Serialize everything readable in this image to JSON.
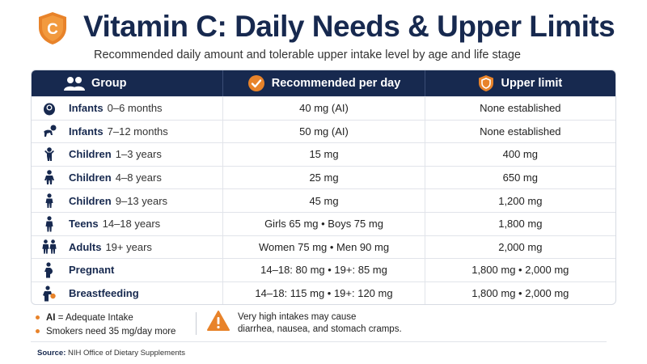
{
  "header": {
    "logo_letter": "C",
    "title": "Vitamin C: Daily Needs & Upper Limits",
    "subtitle": "Recommended daily amount and tolerable upper intake level by age and life stage"
  },
  "table": {
    "columns": [
      "Group",
      "Recommended per day",
      "Upper limit"
    ],
    "rows": [
      {
        "icon": "infant-icon",
        "group": "Infants",
        "age": "0–6 months",
        "recommended": "40 mg (AI)",
        "upper": "None established"
      },
      {
        "icon": "crawling-baby-icon",
        "group": "Infants",
        "age": "7–12 months",
        "recommended": "50 mg (AI)",
        "upper": "None established"
      },
      {
        "icon": "toddler-icon",
        "group": "Children",
        "age": "1–3 years",
        "recommended": "15 mg",
        "upper": "400 mg"
      },
      {
        "icon": "child-icon",
        "group": "Children",
        "age": "4–8 years",
        "recommended": "25 mg",
        "upper": "650 mg"
      },
      {
        "icon": "child-icon",
        "group": "Children",
        "age": "9–13 years",
        "recommended": "45 mg",
        "upper": "1,200 mg"
      },
      {
        "icon": "teen-icon",
        "group": "Teens",
        "age": "14–18 years",
        "recommended": "Girls 65 mg  •  Boys 75 mg",
        "upper": "1,800 mg"
      },
      {
        "icon": "adults-icon",
        "group": "Adults",
        "age": "19+ years",
        "recommended": "Women 75 mg  •  Men 90 mg",
        "upper": "2,000 mg"
      },
      {
        "icon": "pregnant-icon",
        "group": "Pregnant",
        "age": "",
        "recommended": "14–18: 80 mg  •  19+: 85 mg",
        "upper": "1,800 mg  •  2,000 mg"
      },
      {
        "icon": "breastfeeding-icon",
        "group": "Breastfeeding",
        "age": "",
        "recommended": "14–18: 115 mg  •  19+: 120 mg",
        "upper": "1,800 mg  •  2,000 mg"
      }
    ]
  },
  "notes": {
    "ai_abbr": "AI",
    "ai_text": " = Adequate Intake",
    "smokers": "Smokers need 35 mg/day more",
    "warning_line1": "Very high intakes may cause",
    "warning_line2": "diarrhea, nausea, and stomach cramps."
  },
  "source": {
    "label": "Source:",
    "text": " NIH Office of Dietary Supplements"
  },
  "colors": {
    "navy": "#17294f",
    "orange": "#e8832a"
  }
}
